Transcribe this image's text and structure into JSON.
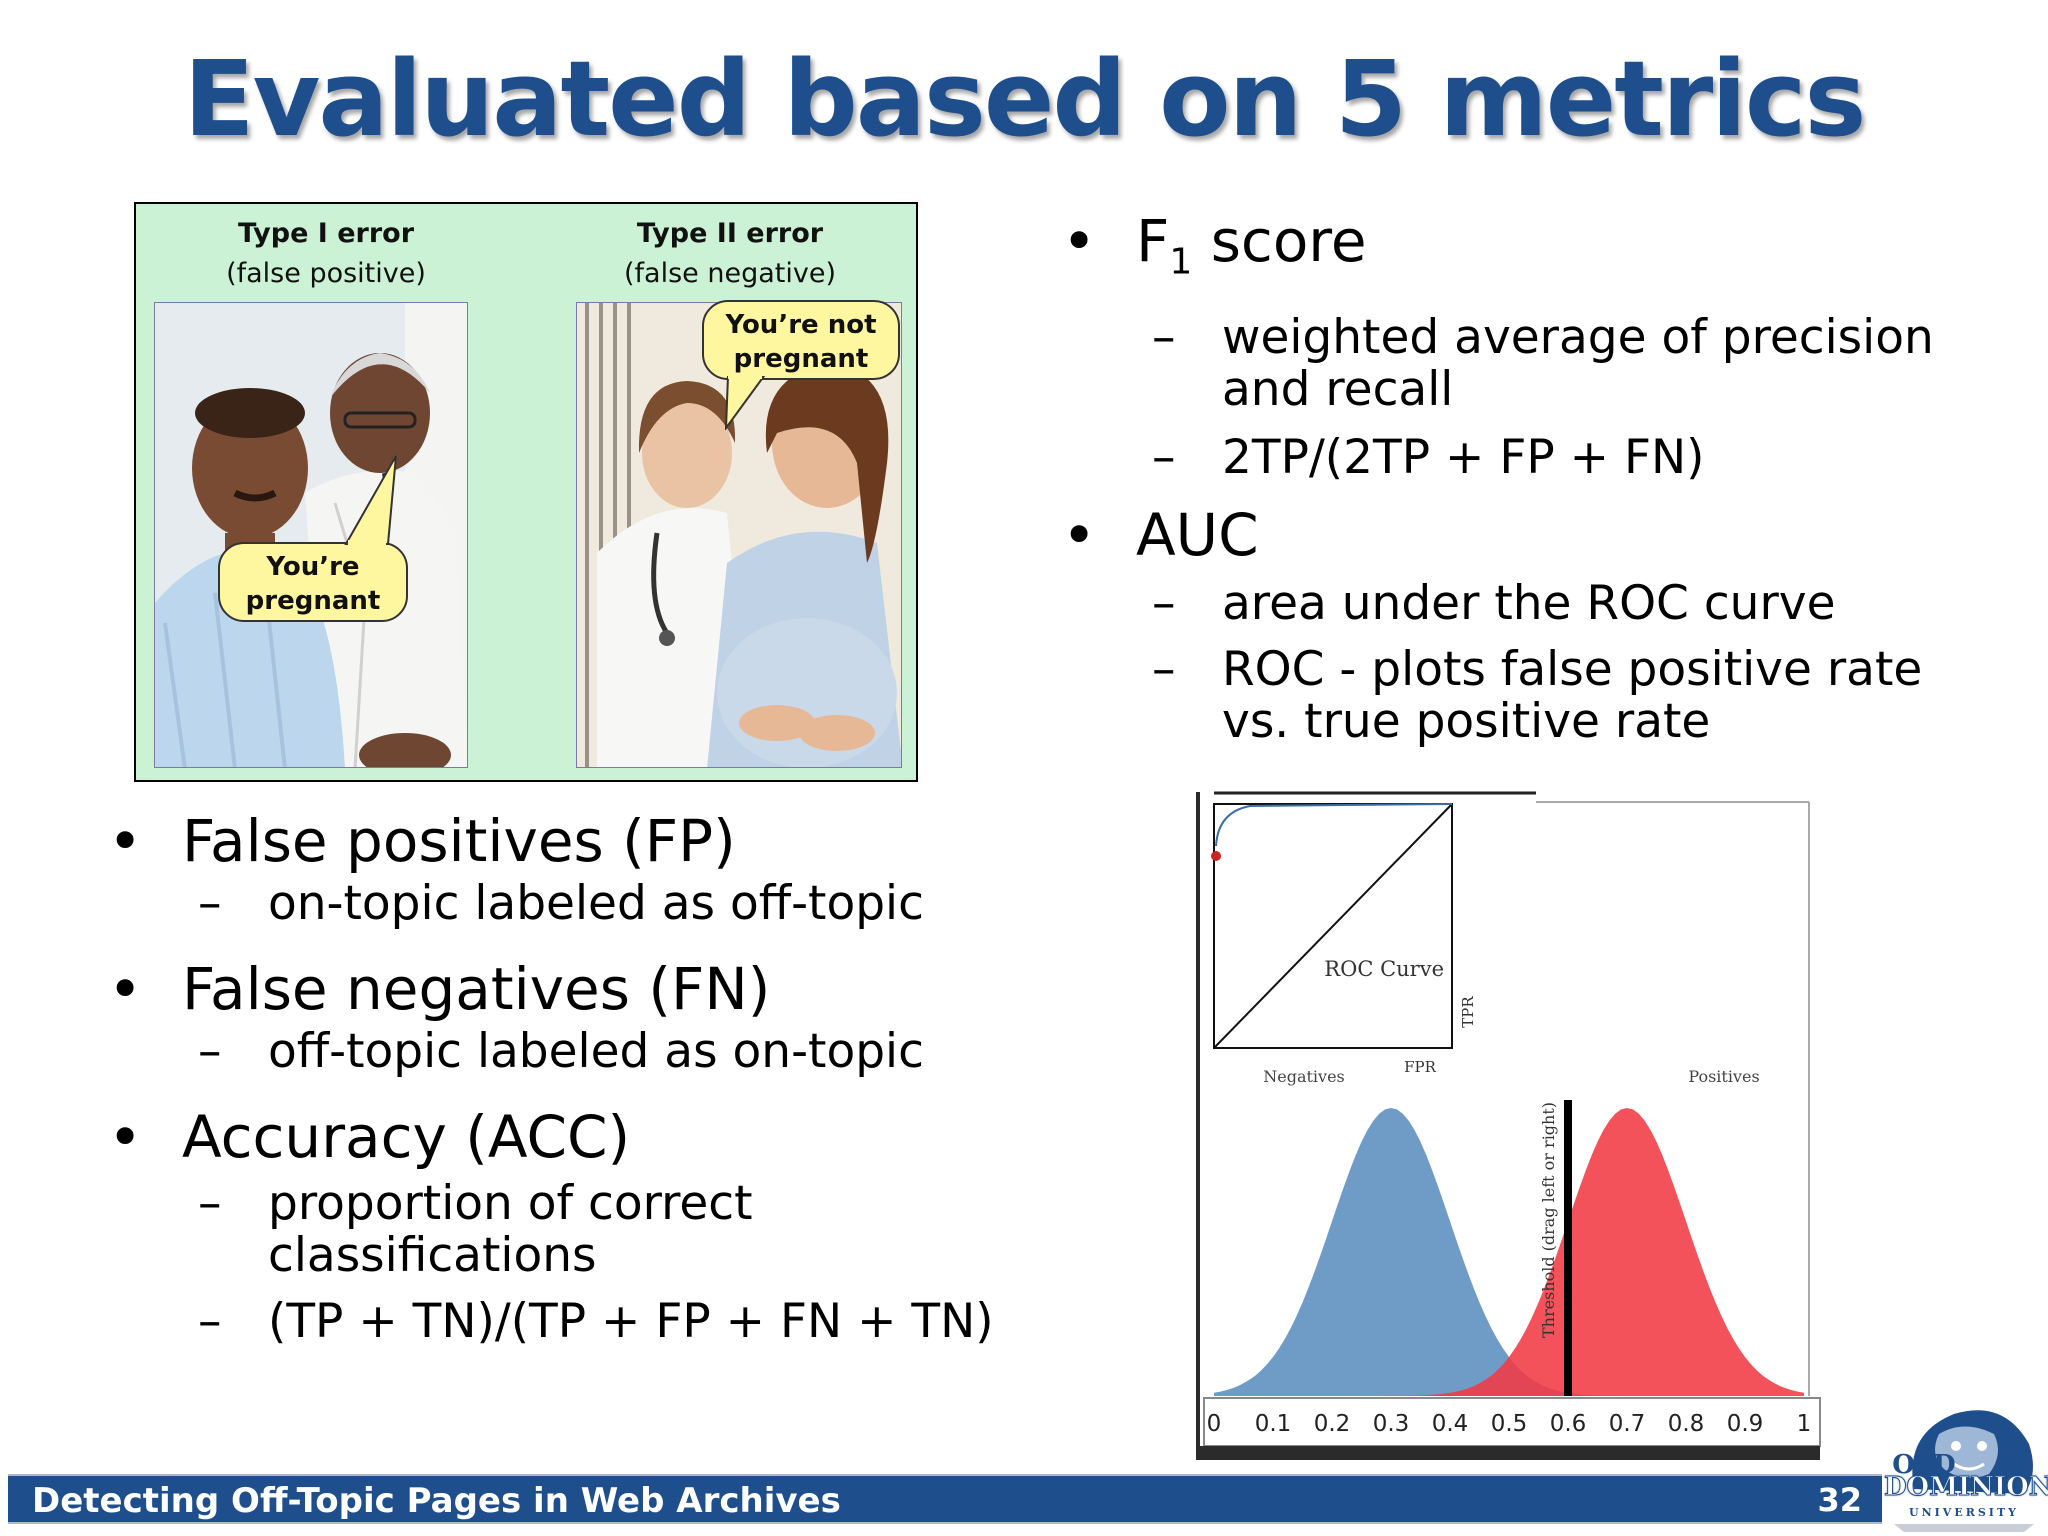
{
  "slide": {
    "title": "Evaluated based on 5 metrics",
    "footer_title": "Detecting Off-Topic Pages in Web Archives",
    "page_number": "32"
  },
  "error_image": {
    "type1_heading": "Type I error",
    "type1_sub": "(false positive)",
    "type2_heading": "Type II error",
    "type2_sub": "(false negative)",
    "bubble_type1_line1": "You’re",
    "bubble_type1_line2": "pregnant",
    "bubble_type2_line1": "You’re not",
    "bubble_type2_line2": "pregnant"
  },
  "left_bullets": {
    "fp": "False positives (FP)",
    "fp_sub": "on-topic labeled as off-topic",
    "fn": "False negatives (FN)",
    "fn_sub": "off-topic labeled as on-topic",
    "acc": "Accuracy (ACC)",
    "acc_sub1": "proportion of correct classifications",
    "acc_sub2": "(TP + TN)/(TP + FP + FN + TN)"
  },
  "right_bullets": {
    "f1_main": "F",
    "f1_subscript": "1",
    "f1_rest": " score",
    "f1_sub1": "weighted average of precision and recall",
    "f1_sub2": "2TP/(2TP + FP + FN)",
    "auc": "AUC",
    "auc_sub1": "area under the ROC curve",
    "auc_sub2": "ROC - plots false positive rate vs. true positive rate"
  },
  "roc_applet": {
    "roc_label": "ROC Curve",
    "fpr_label": "FPR",
    "tpr_label": "TPR",
    "negatives_label": "Negatives",
    "positives_label": "Positives",
    "threshold_label": "Threshold (drag left or right)",
    "axis_ticks": [
      "0",
      "0.1",
      "0.2",
      "0.3",
      "0.4",
      "0.5",
      "0.6",
      "0.7",
      "0.8",
      "0.9",
      "1"
    ],
    "negatives_mean": 0.3,
    "positives_mean": 0.7,
    "threshold_value": 0.6,
    "negatives_color": "#6f9cc6",
    "positives_color": "#f23a44"
  },
  "logo": {
    "line1": "OLD",
    "line2": "DOMINION",
    "line3": "UNIVERSITY"
  },
  "colors": {
    "title": "#1f4e8c",
    "footer_bg": "#1f4e8c",
    "panel_bg": "#ccf2d6",
    "bubble_bg": "#fff7a0"
  }
}
